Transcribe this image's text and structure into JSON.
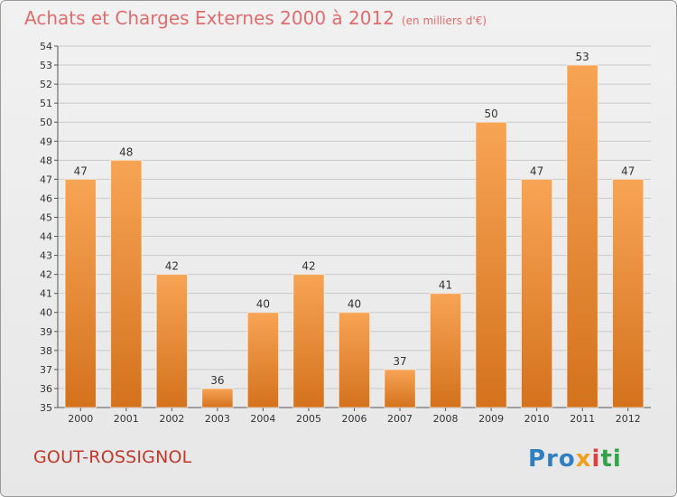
{
  "header": {
    "title": "Achats et Charges Externes 2000 à 2012",
    "subtitle": "(en milliers d'€)"
  },
  "footer": {
    "commune": "GOUT-ROSSIGNOL",
    "logo": [
      "Pro",
      "x",
      "i",
      "ti"
    ]
  },
  "colors": {
    "bar_light": "#f7a455",
    "bar_dark": "#d4721d",
    "title": "#e06d6d",
    "commune": "#c0392b"
  },
  "chart_data": {
    "type": "bar",
    "title": "Achats et Charges Externes 2000 à 2012",
    "subtitle": "(en milliers d'€)",
    "categories": [
      "2000",
      "2001",
      "2002",
      "2003",
      "2004",
      "2005",
      "2006",
      "2007",
      "2008",
      "2009",
      "2010",
      "2011",
      "2012"
    ],
    "values": [
      47,
      48,
      42,
      36,
      40,
      42,
      40,
      37,
      41,
      50,
      47,
      53,
      47
    ],
    "ylim": [
      35,
      54
    ],
    "yticks": [
      35,
      36,
      37,
      38,
      39,
      40,
      41,
      42,
      43,
      44,
      45,
      46,
      47,
      48,
      49,
      50,
      51,
      52,
      53,
      54
    ],
    "grid": true,
    "data_labels": true
  }
}
